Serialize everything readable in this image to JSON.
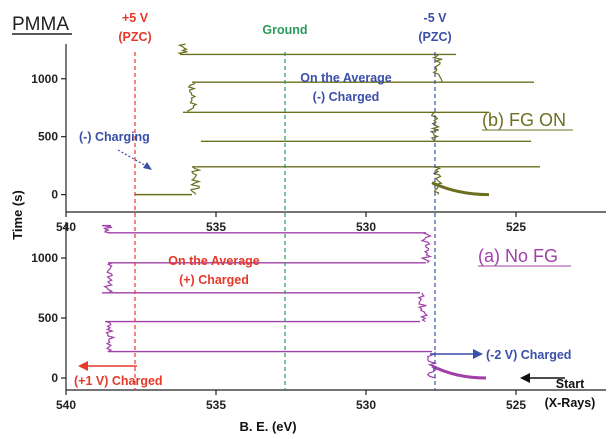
{
  "chart_data": {
    "type": "line",
    "title": "PMMA",
    "xlabel": "B. E. (eV)",
    "ylabel": "Time (s)",
    "x_ticks": [
      540,
      535,
      530,
      525
    ],
    "y_ticks": [
      0,
      500,
      1000
    ],
    "xlim": [
      540,
      522
    ],
    "panels": [
      {
        "id": "top",
        "label": "(b) FG ON",
        "color": "#6b7021",
        "ylim": [
          -150,
          1300
        ],
        "series": [
          {
            "segments": [
              {
                "from": [
                  527.8,
                  0
                ],
                "to": [
                  525.9,
                  0
                ],
                "decay": true
              },
              {
                "from": [
                  535.8,
                  0
                ],
                "to": [
                  537.7,
                  0
                ]
              },
              {
                "from": [
                  535.8,
                  240
                ],
                "to": [
                  524.2,
                  240
                ]
              },
              {
                "from": [
                  535.5,
                  460
                ],
                "to": [
                  524.5,
                  460
                ]
              },
              {
                "from": [
                  536.1,
                  710
                ],
                "to": [
                  525.9,
                  710
                ]
              },
              {
                "from": [
                  535.8,
                  970
                ],
                "to": [
                  524.4,
                  970
                ]
              },
              {
                "from": [
                  536.2,
                  1210
                ],
                "to": [
                  527.0,
                  1210
                ]
              }
            ],
            "noise_bands": [
              {
                "x": 527.6,
                "y_from": 0,
                "y_to": 240
              },
              {
                "x": 535.7,
                "y_from": 0,
                "y_to": 240
              },
              {
                "x": 527.7,
                "y_from": 460,
                "y_to": 710
              },
              {
                "x": 535.8,
                "y_from": 710,
                "y_to": 970
              },
              {
                "x": 527.6,
                "y_from": 970,
                "y_to": 1210
              },
              {
                "x": 536.1,
                "y_from": 1210,
                "y_to": 1300
              }
            ]
          }
        ]
      },
      {
        "id": "bottom",
        "label": "(a) No FG",
        "color": "#a040a8",
        "ylim": [
          -100,
          1300
        ],
        "series": [
          {
            "segments": [
              {
                "from": [
                  527.8,
                  0
                ],
                "to": [
                  526.0,
                  0
                ],
                "decay": true
              },
              {
                "from": [
                  538.6,
                  220
                ],
                "to": [
                  527.8,
                  220
                ]
              },
              {
                "from": [
                  538.7,
                  470
                ],
                "to": [
                  528.2,
                  470
                ]
              },
              {
                "from": [
                  538.8,
                  710
                ],
                "to": [
                  528.2,
                  710
                ]
              },
              {
                "from": [
                  538.6,
                  960
                ],
                "to": [
                  528.0,
                  960
                ]
              },
              {
                "from": [
                  538.6,
                  1210
                ],
                "to": [
                  528.0,
                  1210
                ]
              },
              {
                "from": [
                  538.8,
                  1270
                ],
                "to": [
                  538.5,
                  1270
                ]
              }
            ],
            "noise_bands": [
              {
                "x": 527.8,
                "y_from": 0,
                "y_to": 220
              },
              {
                "x": 538.5,
                "y_from": 220,
                "y_to": 470
              },
              {
                "x": 528.1,
                "y_from": 470,
                "y_to": 710
              },
              {
                "x": 538.6,
                "y_from": 710,
                "y_to": 960
              },
              {
                "x": 528.0,
                "y_from": 960,
                "y_to": 1210
              },
              {
                "x": 538.6,
                "y_from": 1210,
                "y_to": 1270
              }
            ]
          }
        ]
      }
    ],
    "reference_lines": [
      {
        "x": 537.7,
        "color": "#e53a2a",
        "label_lines": [
          "+5 V",
          "(PZC)"
        ]
      },
      {
        "x": 532.7,
        "color": "#2a9a5a",
        "label_lines": [
          "Ground"
        ]
      },
      {
        "x": 527.7,
        "color": "#3a4fa8",
        "label_lines": [
          "-5 V",
          "(PZC)"
        ]
      }
    ],
    "annotations": {
      "top_average": [
        "On the Average",
        "(-) Charged"
      ],
      "charging": "(-) Charging",
      "bottom_average": [
        "On the Average",
        "(+) Charged"
      ],
      "plus1": "(+1 V) Charged",
      "minus2": "(-2 V) Charged",
      "start": [
        "Start",
        "(X-Rays)"
      ]
    },
    "colors": {
      "red": "#e53a2a",
      "blue": "#3a4fa8",
      "olive": "#6b7021",
      "magenta": "#a040a8"
    }
  }
}
